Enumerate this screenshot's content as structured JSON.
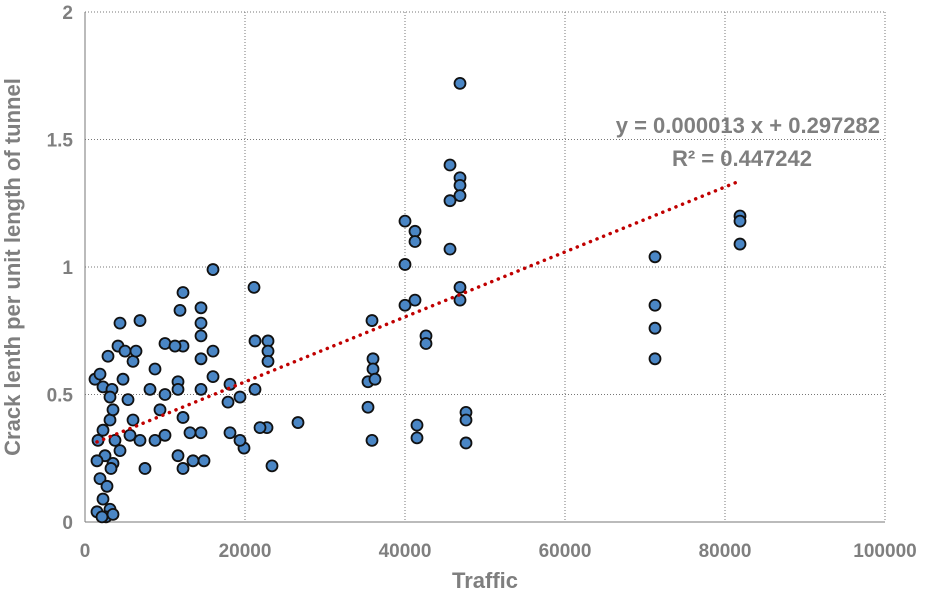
{
  "chart_data": {
    "type": "scatter",
    "x_label": "Traffic",
    "y_label": "Crack lenth per unit length of tunnel",
    "annotations": [
      "y = 0.000013 x + 0.297282",
      "R² = 0.447242"
    ],
    "xlim": [
      0,
      100000
    ],
    "xticks": [
      0,
      20000,
      40000,
      60000,
      80000,
      100000
    ],
    "ylim": [
      0,
      2
    ],
    "yticks": [
      0,
      0.5,
      1,
      1.5,
      2
    ],
    "grid": true,
    "points": {
      "color": "#4a86c5",
      "x": [
        81875,
        81875,
        81875,
        71250,
        71250,
        71250,
        71250,
        46875,
        45625,
        46875,
        46875,
        46875,
        45625,
        45625,
        46875,
        46875,
        47625,
        47625,
        47625,
        40000,
        41250,
        41250,
        40000,
        40000,
        41250,
        42625,
        42625,
        41500,
        41500,
        35875,
        36000,
        36000,
        35375,
        36250,
        35375,
        35875,
        26625,
        23375,
        22750,
        21875,
        21125,
        21250,
        22875,
        22875,
        22875,
        21250,
        19875,
        19375,
        19375,
        16000,
        16000,
        16000,
        18125,
        18125,
        17875,
        14500,
        14500,
        14500,
        14500,
        14500,
        14500,
        14875,
        13500,
        13125,
        12250,
        12250,
        11875,
        11625,
        11625,
        12250,
        12250,
        11625,
        10000,
        11250,
        8750,
        8125,
        6875,
        6875,
        7500,
        8750,
        10000,
        10000,
        9375,
        4375,
        4125,
        5000,
        6000,
        6375,
        4750,
        5375,
        6000,
        5625,
        4375,
        3500,
        1250,
        1875,
        2875,
        2250,
        3375,
        3125,
        2250,
        1625,
        2500,
        1500,
        1875,
        2750,
        2250,
        3125,
        1500,
        2625,
        2125,
        3500,
        3125,
        3500,
        3750,
        3250
      ],
      "y": [
        1.2,
        1.18,
        1.09,
        1.04,
        0.85,
        0.76,
        0.64,
        1.72,
        1.4,
        1.35,
        1.32,
        1.28,
        1.26,
        1.07,
        0.92,
        0.87,
        0.43,
        0.4,
        0.31,
        1.18,
        1.14,
        1.1,
        1.01,
        0.85,
        0.87,
        0.73,
        0.7,
        0.38,
        0.33,
        0.79,
        0.64,
        0.6,
        0.55,
        0.56,
        0.45,
        0.32,
        0.39,
        0.22,
        0.37,
        0.37,
        0.92,
        0.71,
        0.71,
        0.67,
        0.63,
        0.52,
        0.29,
        0.49,
        0.32,
        0.99,
        0.67,
        0.57,
        0.54,
        0.35,
        0.47,
        0.84,
        0.78,
        0.73,
        0.64,
        0.52,
        0.35,
        0.24,
        0.24,
        0.35,
        0.69,
        0.9,
        0.83,
        0.55,
        0.52,
        0.41,
        0.21,
        0.26,
        0.7,
        0.69,
        0.6,
        0.52,
        0.79,
        0.32,
        0.21,
        0.32,
        0.5,
        0.34,
        0.44,
        0.78,
        0.69,
        0.67,
        0.63,
        0.67,
        0.56,
        0.48,
        0.4,
        0.34,
        0.28,
        0.23,
        0.56,
        0.58,
        0.65,
        0.53,
        0.52,
        0.4,
        0.36,
        0.32,
        0.26,
        0.24,
        0.17,
        0.14,
        0.09,
        0.05,
        0.04,
        0.02,
        0.02,
        0.03,
        0.49,
        0.44,
        0.32,
        0.21
      ]
    },
    "trendline": {
      "color": "#c00000",
      "x": [
        1500,
        81500
      ],
      "y": [
        0.314,
        1.333
      ]
    }
  }
}
